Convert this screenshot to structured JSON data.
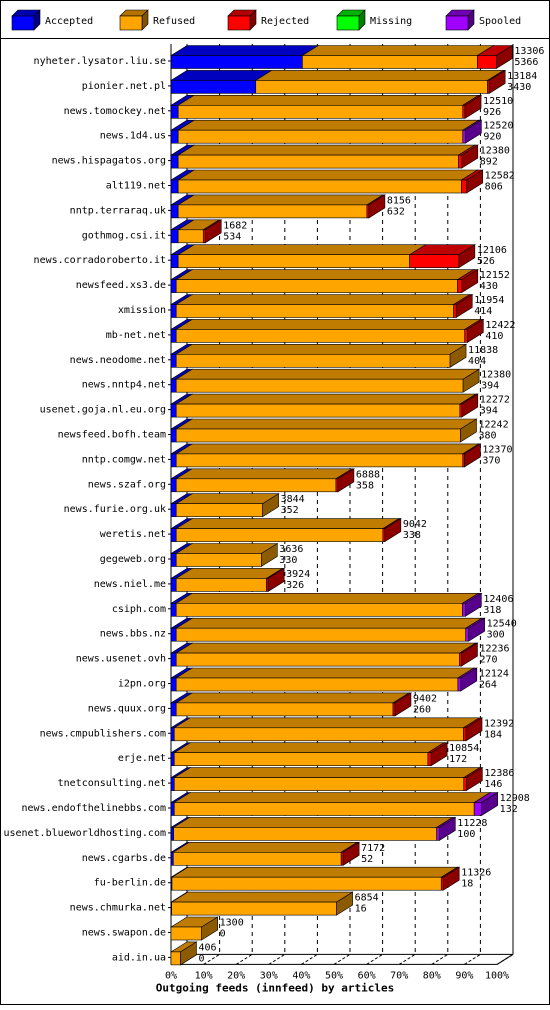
{
  "chart_data": {
    "type": "bar",
    "orientation": "horizontal",
    "stacked": true,
    "style": "3d",
    "legend": {
      "placement": "top",
      "entries": [
        {
          "name": "Accepted",
          "color": "#0000ff"
        },
        {
          "name": "Refused",
          "color": "#ffa500"
        },
        {
          "name": "Rejected",
          "color": "#ff0000"
        },
        {
          "name": "Missing",
          "color": "#00ff00"
        },
        {
          "name": "Spooled",
          "color": "#a000ff"
        }
      ]
    },
    "xlabel": "Outgoing feeds (innfeed) by articles",
    "ylabel": "",
    "x_unit": "percent of offered articles",
    "xlim": [
      0,
      100
    ],
    "x_ticks": [
      "0%",
      "10%",
      "20%",
      "30%",
      "40%",
      "50%",
      "60%",
      "70%",
      "80%",
      "90%",
      "100%"
    ],
    "grid": "vertical dashed",
    "categories": [
      "nyheter.lysator.liu.se",
      "pionier.net.pl",
      "news.tomockey.net",
      "news.1d4.us",
      "news.hispagatos.org",
      "alt119.net",
      "nntp.terraraq.uk",
      "gothmog.csi.it",
      "news.corradoroberto.it",
      "newsfeed.xs3.de",
      "xmission",
      "mb-net.net",
      "news.neodome.net",
      "news.nntp4.net",
      "usenet.goja.nl.eu.org",
      "newsfeed.bofh.team",
      "nntp.comgw.net",
      "news.szaf.org",
      "news.furie.org.uk",
      "weretis.net",
      "gegeweb.org",
      "news.niel.me",
      "csiph.com",
      "news.bbs.nz",
      "news.usenet.ovh",
      "i2pn.org",
      "news.quux.org",
      "news.cmpublishers.com",
      "erje.net",
      "tnetconsulting.net",
      "news.endofthelinebbs.com",
      "usenet.blueworldhosting.com",
      "news.cgarbs.de",
      "fu-berlin.de",
      "news.chmurka.net",
      "news.swapon.de",
      "aid.in.ua"
    ],
    "offered": [
      13306,
      13184,
      12510,
      12520,
      12380,
      12582,
      8156,
      1682,
      12106,
      12152,
      11954,
      12422,
      11838,
      12380,
      12272,
      12242,
      12370,
      6888,
      3844,
      9042,
      3636,
      3924,
      12406,
      12540,
      12236,
      12124,
      9402,
      12392,
      10854,
      12386,
      12908,
      11228,
      7172,
      11326,
      6854,
      1300,
      406
    ],
    "accepted": [
      5366,
      3430,
      926,
      920,
      892,
      806,
      632,
      534,
      526,
      430,
      414,
      410,
      404,
      394,
      394,
      380,
      370,
      358,
      352,
      338,
      330,
      326,
      318,
      300,
      270,
      264,
      260,
      184,
      172,
      146,
      132,
      100,
      52,
      18,
      16,
      0,
      0
    ],
    "series": [
      {
        "name": "Accepted",
        "values": [
          40.3,
          26.0,
          2.2,
          2.2,
          2.2,
          2.2,
          2.2,
          2.2,
          2.2,
          1.6,
          1.6,
          1.6,
          1.6,
          1.6,
          1.6,
          1.6,
          1.6,
          1.6,
          1.6,
          1.6,
          1.6,
          1.6,
          1.6,
          1.6,
          1.6,
          1.6,
          1.6,
          1.0,
          1.0,
          1.0,
          1.0,
          0.8,
          0.7,
          0.3,
          0.2,
          0.0,
          0.0
        ]
      },
      {
        "name": "Refused",
        "values": [
          53.7,
          71.1,
          87.3,
          87.3,
          86.0,
          86.9,
          57.9,
          7.7,
          71.0,
          86.3,
          85.1,
          88.5,
          84.0,
          88.0,
          87.0,
          87.2,
          87.9,
          49.0,
          26.5,
          63.4,
          26.1,
          27.7,
          87.8,
          88.8,
          86.9,
          86.4,
          66.5,
          88.7,
          77.8,
          88.8,
          92.0,
          80.7,
          51.5,
          82.6,
          50.6,
          9.4,
          2.9
        ]
      },
      {
        "name": "Rejected",
        "values": [
          5.8,
          0.5,
          0.7,
          0.0,
          1.0,
          1.6,
          0.6,
          0.6,
          15.1,
          1.3,
          0.8,
          0.8,
          0.0,
          0.0,
          0.6,
          0.0,
          0.5,
          0.6,
          0.0,
          0.6,
          0.0,
          0.5,
          0.0,
          0.0,
          0.6,
          0.0,
          0.6,
          0.8,
          1.0,
          0.8,
          0.0,
          0.0,
          0.6,
          0.6,
          0.0,
          0.0,
          0.0
        ]
      },
      {
        "name": "Missing",
        "values": [
          0,
          0,
          0,
          0,
          0,
          0,
          0,
          0,
          0,
          0,
          0,
          0,
          0,
          0,
          0,
          0,
          0,
          0,
          0,
          0,
          0,
          0,
          0,
          0,
          0,
          0,
          0,
          0,
          0,
          0,
          0,
          0,
          0,
          0,
          0,
          0,
          0
        ]
      },
      {
        "name": "Spooled",
        "values": [
          0,
          0,
          0,
          0.8,
          0,
          0,
          0,
          0,
          0,
          0,
          0,
          0,
          0,
          0,
          0,
          0,
          0,
          0,
          0,
          0,
          0,
          0,
          0.9,
          0.9,
          0,
          0.9,
          0,
          0,
          0,
          0,
          2.3,
          0.8,
          0,
          0,
          0,
          0,
          0
        ]
      }
    ]
  }
}
